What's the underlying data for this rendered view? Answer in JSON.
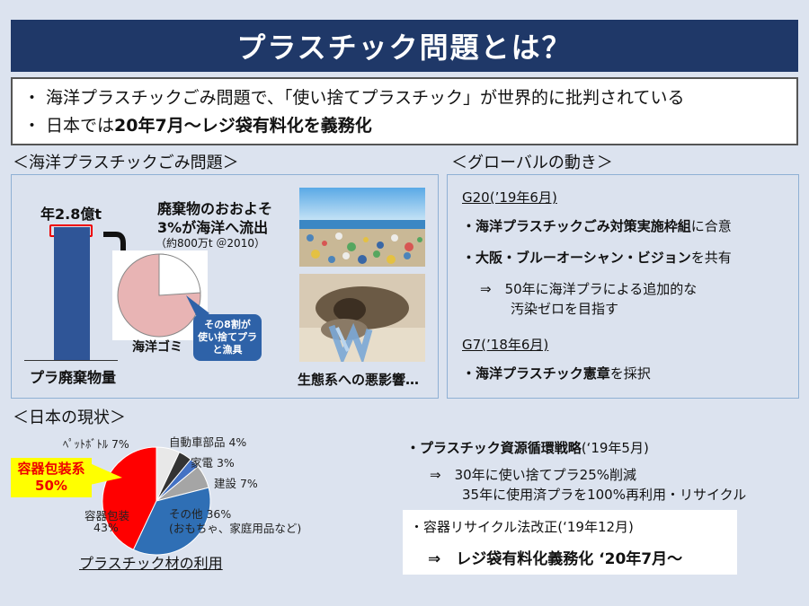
{
  "title": "プラスチック問題とは？",
  "summary": {
    "line1": "・ 海洋プラスチックごみ問題で、「使い捨てプラスチック」が世界的に批判されている",
    "line2_prefix": "・ 日本では",
    "line2_bold": "20年7月～レジ袋有料化を義務化"
  },
  "ocean_section": {
    "heading": "＜海洋プラスチックごみ問題＞",
    "bar_top_label": "年2.8億t",
    "bar_bottom_label": "プラ廃棄物量",
    "outflow_line1": "廃棄物のおおよそ",
    "outflow_line2": "3%が海洋へ流出",
    "outflow_note": "（約800万t ＠2010）",
    "pie_label": "海洋ゴミ",
    "callout_line1": "その8割が",
    "callout_line2": "使い捨てプラ",
    "callout_line3": "と漁具",
    "eco_caption": "生態系への悪影響…",
    "colors": {
      "bar": "#2f5597",
      "pie": "#e8b4b4",
      "callout": "#2e62a8",
      "arrow": "#111111"
    }
  },
  "global_section": {
    "heading": "＜グローバルの動き＞",
    "g20_title": "G20(’19年6月)",
    "g20_item1_bold": "・海洋プラスチックごみ対策実施枠組",
    "g20_item1_rest": "に合意",
    "g20_item2_bold": "・大阪・ブルーオーシャン・ビジョン",
    "g20_item2_rest": "を共有",
    "g20_sub_line1": "⇒　50年に海洋プラによる追加的な",
    "g20_sub_line2": "汚染ゼロを目指す",
    "g7_title": "G7(’18年6月)",
    "g7_item_bold": "・海洋プラスチック憲章",
    "g7_item_rest": "を採択"
  },
  "japan_section": {
    "heading": "＜日本の現状＞",
    "highlight_line1": "容器包装系",
    "highlight_line2": "50%",
    "pie_caption": "プラスチック材の利用",
    "pie_labels": {
      "pet": "ﾍﾟｯﾄﾎﾞﾄﾙ 7%",
      "auto": "自動車部品 4%",
      "appliance": "家電 3%",
      "construction": "建設 7%",
      "other_line1": "その他 36%",
      "other_line2": "(おもちゃ、家庭用品など)",
      "container_line1": "容器包装",
      "container_line2": "43%"
    },
    "strategy_bold": "・プラスチック資源循環戦略",
    "strategy_date": "(‘19年5月)",
    "strategy_line1": "⇒　30年に使い捨てプラ25%削減",
    "strategy_line2": "35年に使用済プラを100%再利用・リサイクル",
    "recycle_title": "・容器リサイクル法改正(‘19年12月)",
    "recycle_result": "⇒　レジ袋有料化義務化 ‘20年7月～"
  },
  "chart_data": {
    "type": "pie",
    "title": "プラスチック材の利用",
    "categories": [
      "容器包装",
      "ﾍﾟｯﾄﾎﾞﾄﾙ",
      "自動車部品",
      "家電",
      "建設",
      "その他"
    ],
    "values": [
      43,
      7,
      4,
      3,
      7,
      36
    ],
    "colors": [
      "#ff0000",
      "#e8e8e8",
      "#333333",
      "#4472c4",
      "#a5a5a5",
      "#2f6fb5"
    ]
  }
}
